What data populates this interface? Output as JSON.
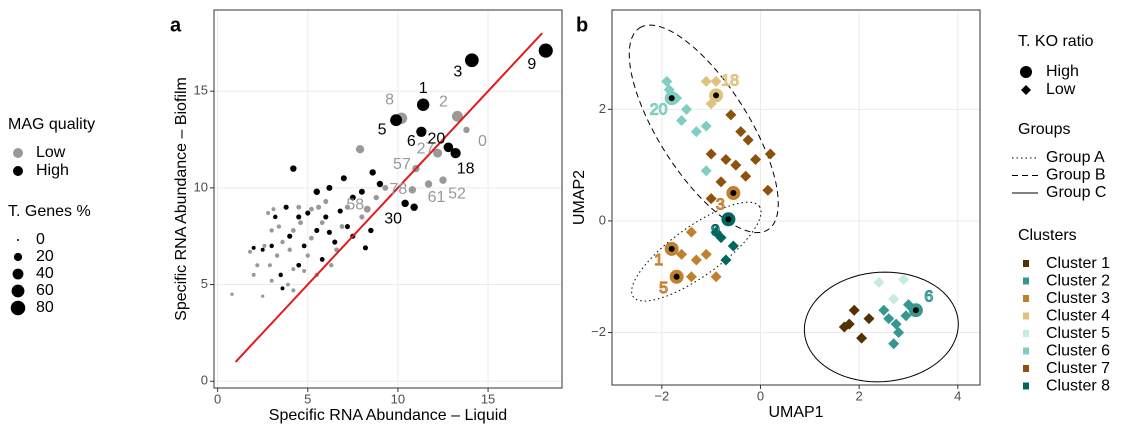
{
  "chart_data": [
    {
      "type": "scatter",
      "panel": "a",
      "x_label": "Specific RNA Abundance – Liquid",
      "y_label": "Specific RNA Abundance – Biofilm",
      "xlim": [
        -0.2,
        19.1
      ],
      "ylim": [
        -0.35,
        19.2
      ],
      "xticks": [
        0,
        5,
        10,
        15
      ],
      "yticks": [
        0,
        5,
        10,
        15
      ],
      "grid": true,
      "legend_title": "MAG quality",
      "size_legend": {
        "title": "T. Genes %",
        "values": [
          0,
          20,
          40,
          60,
          80
        ]
      },
      "line": {
        "color": "#e41a1c",
        "x": [
          1,
          18
        ],
        "values": [
          1,
          18
        ]
      },
      "series": [
        {
          "name": "Low",
          "color": "#999999",
          "x": [
            10.2,
            13.3,
            13.8,
            12.2,
            11.0,
            10.8,
            11.7,
            12.5,
            8.3,
            7.9,
            0.8,
            2.5,
            2.2,
            2.6,
            3.0,
            2.8,
            3.1,
            3.4,
            3.6,
            3.3,
            4.0,
            4.2,
            4.6,
            4.5,
            5.2,
            5.6,
            6.0,
            5.8,
            5.2,
            5.0,
            5.5,
            4.8,
            4.2,
            3.9,
            4.2,
            6.3,
            6.6,
            6.9,
            7.2,
            8.0,
            8.8,
            9.3,
            2.0,
            1.8,
            2.9,
            3.0
          ],
          "values": [
            13.6,
            13.7,
            13.0,
            11.8,
            11.0,
            9.9,
            10.2,
            10.4,
            8.9,
            12.0,
            4.5,
            4.4,
            6.0,
            7.0,
            7.8,
            8.7,
            8.9,
            8.0,
            7.2,
            6.5,
            6.8,
            7.8,
            8.2,
            9.0,
            8.9,
            9.0,
            9.3,
            8.2,
            7.4,
            6.5,
            5.5,
            5.7,
            5.8,
            5.0,
            4.7,
            6.0,
            6.8,
            8.0,
            9.0,
            8.5,
            9.5,
            10.0,
            5.5,
            6.7,
            6.0,
            5.2
          ],
          "sizes": [
            45,
            40,
            10,
            25,
            15,
            15,
            15,
            15,
            12,
            20,
            1,
            1,
            2,
            2,
            3,
            2,
            2,
            3,
            3,
            3,
            3,
            4,
            4,
            4,
            4,
            5,
            5,
            4,
            4,
            3,
            3,
            2,
            2,
            2,
            2,
            3,
            4,
            4,
            5,
            5,
            6,
            8,
            2,
            2,
            2,
            2
          ],
          "labels": [
            "8",
            "2",
            "0",
            "27",
            "57",
            "78",
            "61",
            "52",
            "58",
            null,
            null,
            null,
            null,
            null,
            null,
            null,
            null,
            null,
            null,
            null,
            null,
            null,
            null,
            null,
            null,
            null,
            null,
            null,
            null,
            null,
            null,
            null,
            null,
            null,
            null,
            null,
            null,
            null,
            null,
            null,
            null,
            null,
            null,
            null,
            null,
            null
          ]
        },
        {
          "name": "High",
          "color": "#000000",
          "x": [
            18.2,
            14.1,
            11.4,
            9.9,
            11.3,
            12.8,
            13.2,
            10.4,
            4.2,
            5.5,
            6.2,
            7.0,
            7.5,
            8.0,
            9.0,
            8.6,
            10.9,
            3.8,
            4.5,
            5.0,
            6.0,
            6.8,
            7.2,
            5.5,
            4.0,
            3.0,
            2.0,
            2.5,
            4.8,
            6.5,
            7.5,
            8.2,
            4.5,
            3.5,
            5.8,
            3.2,
            6.2,
            8.5,
            3.6
          ],
          "values": [
            17.1,
            16.6,
            14.3,
            13.5,
            12.9,
            12.1,
            11.8,
            9.2,
            11.0,
            9.8,
            10.0,
            10.5,
            9.5,
            9.8,
            10.2,
            10.8,
            9.0,
            9.0,
            8.5,
            8.7,
            8.5,
            8.8,
            8.0,
            7.8,
            7.5,
            7.0,
            6.9,
            6.8,
            7.0,
            7.2,
            7.5,
            6.9,
            6.0,
            5.5,
            6.3,
            8.5,
            7.7,
            7.8,
            4.8
          ],
          "sizes": [
            75,
            70,
            55,
            50,
            35,
            30,
            35,
            15,
            10,
            10,
            8,
            8,
            8,
            8,
            10,
            10,
            15,
            5,
            5,
            5,
            5,
            5,
            5,
            5,
            5,
            3,
            2,
            2,
            4,
            5,
            5,
            5,
            4,
            3,
            4,
            3,
            5,
            6,
            2
          ],
          "labels": [
            "9",
            "3",
            "1",
            "5",
            "6",
            "20",
            "18",
            "30",
            null,
            null,
            null,
            null,
            null,
            null,
            null,
            null,
            null,
            null,
            null,
            null,
            null,
            null,
            null,
            null,
            null,
            null,
            null,
            null,
            null,
            null,
            null,
            null,
            null,
            null,
            null,
            null,
            null,
            null,
            null
          ]
        }
      ]
    },
    {
      "type": "scatter",
      "panel": "b",
      "x_label": "UMAP1",
      "y_label": "UMAP2",
      "xlim": [
        -3.01,
        4.45
      ],
      "ylim": [
        -2.94,
        3.78
      ],
      "xticks": [
        {
          "value": -2,
          "label": "−2"
        },
        0,
        2,
        4
      ],
      "yticks": [
        {
          "value": -2,
          "label": "−2"
        },
        0,
        2
      ],
      "grid": true,
      "shape_legend": {
        "title": "T. KO ratio",
        "entries": [
          "High",
          "Low"
        ]
      },
      "groups": {
        "title": "Groups",
        "items": [
          {
            "name": "Group A",
            "dash": "1.5 3",
            "center": [
              -1.3,
              -0.55
            ],
            "axis1": [
              1.28,
              0.81
            ],
            "axis2": [
              0.29,
              -0.36
            ]
          },
          {
            "name": "Group B",
            "dash": "6 4",
            "center": [
              -1.15,
              1.65
            ],
            "axis1": [
              -1.3,
              1.81
            ],
            "axis2": [
              0.77,
              0.43
            ]
          },
          {
            "name": "Group C",
            "dash": "none",
            "center": [
              2.45,
              -1.9
            ],
            "axis1": [
              1.56,
              0.08
            ],
            "axis2": [
              -0.05,
              0.98
            ]
          }
        ]
      },
      "legend_title": "Clusters",
      "series": [
        {
          "name": "Cluster 1",
          "color": "#543005",
          "x": [
            1.7,
            1.8,
            1.9,
            2.2,
            2.05
          ],
          "values": [
            -1.9,
            -1.85,
            -1.6,
            -1.75,
            -2.1
          ],
          "high": [
            false,
            false,
            false,
            false,
            false
          ],
          "labels": [
            null,
            null,
            null,
            null,
            null
          ]
        },
        {
          "name": "Cluster 2",
          "color": "#35978f",
          "x": [
            2.5,
            2.6,
            2.75,
            2.8,
            2.95,
            3.0,
            2.7,
            3.15
          ],
          "values": [
            -1.6,
            -1.75,
            -1.85,
            -2.0,
            -1.7,
            -1.5,
            -2.2,
            -1.6
          ],
          "high": [
            false,
            false,
            false,
            false,
            false,
            false,
            false,
            true
          ],
          "labels": [
            null,
            null,
            null,
            null,
            null,
            null,
            null,
            "6"
          ]
        },
        {
          "name": "Cluster 3",
          "color": "#bf812d",
          "x": [
            -1.4,
            -1.6,
            -1.3,
            -1.1,
            -1.4,
            -0.9,
            -0.55,
            -1.8,
            -1.7
          ],
          "values": [
            -0.2,
            -0.6,
            -0.7,
            -0.6,
            -1.0,
            -1.0,
            0.5,
            -0.5,
            -1.0
          ],
          "high": [
            false,
            false,
            false,
            false,
            false,
            false,
            true,
            true,
            true
          ],
          "labels": [
            null,
            null,
            null,
            null,
            null,
            null,
            "3",
            "1",
            "5"
          ]
        },
        {
          "name": "Cluster 4",
          "color": "#dfc27d",
          "x": [
            -1.1,
            -0.9,
            -1.0,
            -0.9
          ],
          "values": [
            2.5,
            2.5,
            2.1,
            2.25
          ],
          "high": [
            false,
            false,
            false,
            true
          ],
          "labels": [
            null,
            null,
            null,
            "18"
          ]
        },
        {
          "name": "Cluster 5",
          "color": "#c7eae5",
          "x": [
            2.4,
            2.9,
            2.7
          ],
          "values": [
            -1.1,
            -1.05,
            -1.4
          ],
          "high": [
            false,
            false,
            false
          ],
          "labels": [
            null,
            null,
            null
          ]
        },
        {
          "name": "Cluster 6",
          "color": "#80cdc1",
          "x": [
            -1.9,
            -1.85,
            -1.7,
            -1.5,
            -1.6,
            -1.3,
            -1.1,
            -1.1,
            -1.8
          ],
          "values": [
            2.5,
            2.35,
            2.2,
            2.0,
            1.8,
            1.6,
            1.7,
            0.9,
            2.2
          ],
          "high": [
            false,
            false,
            false,
            false,
            false,
            false,
            false,
            false,
            true
          ],
          "labels": [
            null,
            null,
            null,
            null,
            null,
            null,
            null,
            null,
            "20"
          ]
        },
        {
          "name": "Cluster 7",
          "color": "#8c510a",
          "x": [
            -0.6,
            -0.4,
            -0.25,
            -1.0,
            -0.7,
            -0.5,
            -0.8,
            -0.3,
            -0.1,
            0.2,
            0.15,
            -1.0
          ],
          "values": [
            1.9,
            1.6,
            1.45,
            1.2,
            1.1,
            1.0,
            0.7,
            0.8,
            1.1,
            1.2,
            0.55,
            0.4
          ],
          "high": [
            false,
            false,
            false,
            false,
            false,
            false,
            false,
            false,
            false,
            false,
            false,
            false
          ],
          "labels": [
            null,
            null,
            null,
            null,
            null,
            null,
            null,
            null,
            null,
            null,
            null,
            null
          ]
        },
        {
          "name": "Cluster 8",
          "color": "#01665e",
          "x": [
            -0.9,
            -0.8,
            -0.55,
            -0.7,
            -0.65
          ],
          "values": [
            -0.2,
            -0.3,
            -0.45,
            -0.7,
            0.03
          ],
          "high": [
            false,
            false,
            false,
            false,
            true
          ],
          "labels": [
            null,
            null,
            null,
            null,
            "9"
          ]
        }
      ]
    }
  ]
}
